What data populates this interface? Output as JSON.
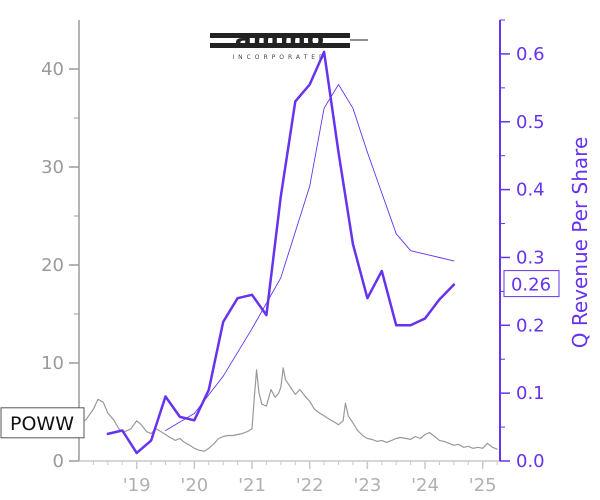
{
  "chart_data": {
    "type": "line",
    "ticker": "POWW",
    "logo": {
      "wordmark": "ammo",
      "tagline": "INCORPORATED"
    },
    "xlim": [
      2018.0,
      2025.3
    ],
    "x_tick_values": [
      2019,
      2020,
      2021,
      2022,
      2023,
      2024,
      2025
    ],
    "x_tick_labels": [
      "'19",
      "'20",
      "'21",
      "'22",
      "'23",
      "'24",
      "'25"
    ],
    "left_axis": {
      "label": "",
      "ylim": [
        0,
        45
      ],
      "ticks": [
        0,
        10,
        20,
        30,
        40
      ],
      "color": "#9a9a9a"
    },
    "right_axis": {
      "label": "Q Revenue Per Share",
      "ylim": [
        0,
        0.65
      ],
      "ticks": [
        0.0,
        0.1,
        0.2,
        0.3,
        0.4,
        0.5,
        0.6
      ],
      "tick_labels": [
        "0.0",
        "0.1",
        "0.2",
        "0.3",
        "0.4",
        "0.5",
        "0.6"
      ],
      "color": "#6633ee",
      "last_value_label": "0.26"
    },
    "series": [
      {
        "axis": "left",
        "color": "#999999",
        "points": [
          [
            2018.0,
            4.0
          ],
          [
            2018.12,
            4.2
          ],
          [
            2018.25,
            5.3
          ],
          [
            2018.33,
            6.3
          ],
          [
            2018.42,
            6.0
          ],
          [
            2018.5,
            4.9
          ],
          [
            2018.6,
            4.2
          ],
          [
            2018.7,
            3.2
          ],
          [
            2018.8,
            3.0
          ],
          [
            2018.9,
            3.3
          ],
          [
            2019.0,
            4.1
          ],
          [
            2019.08,
            3.7
          ],
          [
            2019.17,
            3.0
          ],
          [
            2019.25,
            2.8
          ],
          [
            2019.33,
            3.3
          ],
          [
            2019.42,
            3.0
          ],
          [
            2019.5,
            2.7
          ],
          [
            2019.58,
            2.4
          ],
          [
            2019.67,
            2.1
          ],
          [
            2019.75,
            2.3
          ],
          [
            2019.83,
            1.9
          ],
          [
            2019.92,
            1.6
          ],
          [
            2020.0,
            1.3
          ],
          [
            2020.08,
            1.1
          ],
          [
            2020.17,
            1.0
          ],
          [
            2020.25,
            1.3
          ],
          [
            2020.33,
            1.7
          ],
          [
            2020.42,
            2.3
          ],
          [
            2020.5,
            2.5
          ],
          [
            2020.58,
            2.6
          ],
          [
            2020.67,
            2.6
          ],
          [
            2020.75,
            2.7
          ],
          [
            2020.83,
            2.8
          ],
          [
            2020.92,
            3.0
          ],
          [
            2021.0,
            3.3
          ],
          [
            2021.04,
            6.5
          ],
          [
            2021.08,
            9.3
          ],
          [
            2021.12,
            7.0
          ],
          [
            2021.17,
            5.8
          ],
          [
            2021.25,
            5.6
          ],
          [
            2021.33,
            7.3
          ],
          [
            2021.4,
            6.5
          ],
          [
            2021.46,
            6.9
          ],
          [
            2021.5,
            7.5
          ],
          [
            2021.54,
            9.5
          ],
          [
            2021.58,
            8.3
          ],
          [
            2021.67,
            7.5
          ],
          [
            2021.75,
            6.8
          ],
          [
            2021.83,
            7.3
          ],
          [
            2021.92,
            6.6
          ],
          [
            2022.0,
            6.1
          ],
          [
            2022.08,
            5.3
          ],
          [
            2022.17,
            4.9
          ],
          [
            2022.25,
            4.6
          ],
          [
            2022.33,
            4.3
          ],
          [
            2022.42,
            4.0
          ],
          [
            2022.5,
            3.7
          ],
          [
            2022.58,
            4.1
          ],
          [
            2022.62,
            5.9
          ],
          [
            2022.67,
            4.6
          ],
          [
            2022.75,
            3.9
          ],
          [
            2022.83,
            3.1
          ],
          [
            2022.92,
            2.6
          ],
          [
            2023.0,
            2.3
          ],
          [
            2023.08,
            2.2
          ],
          [
            2023.17,
            2.0
          ],
          [
            2023.25,
            2.1
          ],
          [
            2023.33,
            1.9
          ],
          [
            2023.42,
            2.1
          ],
          [
            2023.5,
            2.3
          ],
          [
            2023.58,
            2.4
          ],
          [
            2023.67,
            2.3
          ],
          [
            2023.75,
            2.2
          ],
          [
            2023.83,
            2.5
          ],
          [
            2023.92,
            2.3
          ],
          [
            2024.0,
            2.7
          ],
          [
            2024.08,
            2.9
          ],
          [
            2024.17,
            2.5
          ],
          [
            2024.25,
            2.1
          ],
          [
            2024.33,
            2.0
          ],
          [
            2024.42,
            1.8
          ],
          [
            2024.5,
            1.6
          ],
          [
            2024.58,
            1.7
          ],
          [
            2024.67,
            1.4
          ],
          [
            2024.75,
            1.5
          ],
          [
            2024.83,
            1.3
          ],
          [
            2024.92,
            1.4
          ],
          [
            2025.0,
            1.3
          ],
          [
            2025.08,
            1.8
          ],
          [
            2025.17,
            1.4
          ],
          [
            2025.25,
            1.2
          ]
        ]
      },
      {
        "axis": "right",
        "color": "#6633ee",
        "points": [
          [
            2018.5,
            0.04
          ],
          [
            2018.75,
            0.045
          ],
          [
            2019.0,
            0.012
          ],
          [
            2019.25,
            0.03
          ],
          [
            2019.5,
            0.095
          ],
          [
            2019.75,
            0.065
          ],
          [
            2020.0,
            0.06
          ],
          [
            2020.25,
            0.105
          ],
          [
            2020.5,
            0.205
          ],
          [
            2020.75,
            0.24
          ],
          [
            2021.0,
            0.245
          ],
          [
            2021.25,
            0.215
          ],
          [
            2021.5,
            0.39
          ],
          [
            2021.75,
            0.53
          ],
          [
            2022.0,
            0.555
          ],
          [
            2022.25,
            0.603
          ],
          [
            2022.5,
            0.455
          ],
          [
            2022.75,
            0.32
          ],
          [
            2023.0,
            0.24
          ],
          [
            2023.25,
            0.28
          ],
          [
            2023.5,
            0.2
          ],
          [
            2023.75,
            0.2
          ],
          [
            2024.0,
            0.21
          ],
          [
            2024.25,
            0.238
          ],
          [
            2024.5,
            0.26
          ]
        ]
      },
      {
        "axis": "right",
        "color": "#6633ee",
        "points": [
          [
            2019.5,
            0.045
          ],
          [
            2020.0,
            0.07
          ],
          [
            2020.5,
            0.125
          ],
          [
            2021.0,
            0.195
          ],
          [
            2021.5,
            0.27
          ],
          [
            2022.0,
            0.405
          ],
          [
            2022.25,
            0.52
          ],
          [
            2022.5,
            0.555
          ],
          [
            2022.75,
            0.52
          ],
          [
            2023.0,
            0.455
          ],
          [
            2023.5,
            0.335
          ],
          [
            2023.75,
            0.31
          ],
          [
            2024.0,
            0.305
          ],
          [
            2024.25,
            0.3
          ],
          [
            2024.5,
            0.295
          ]
        ]
      }
    ]
  }
}
